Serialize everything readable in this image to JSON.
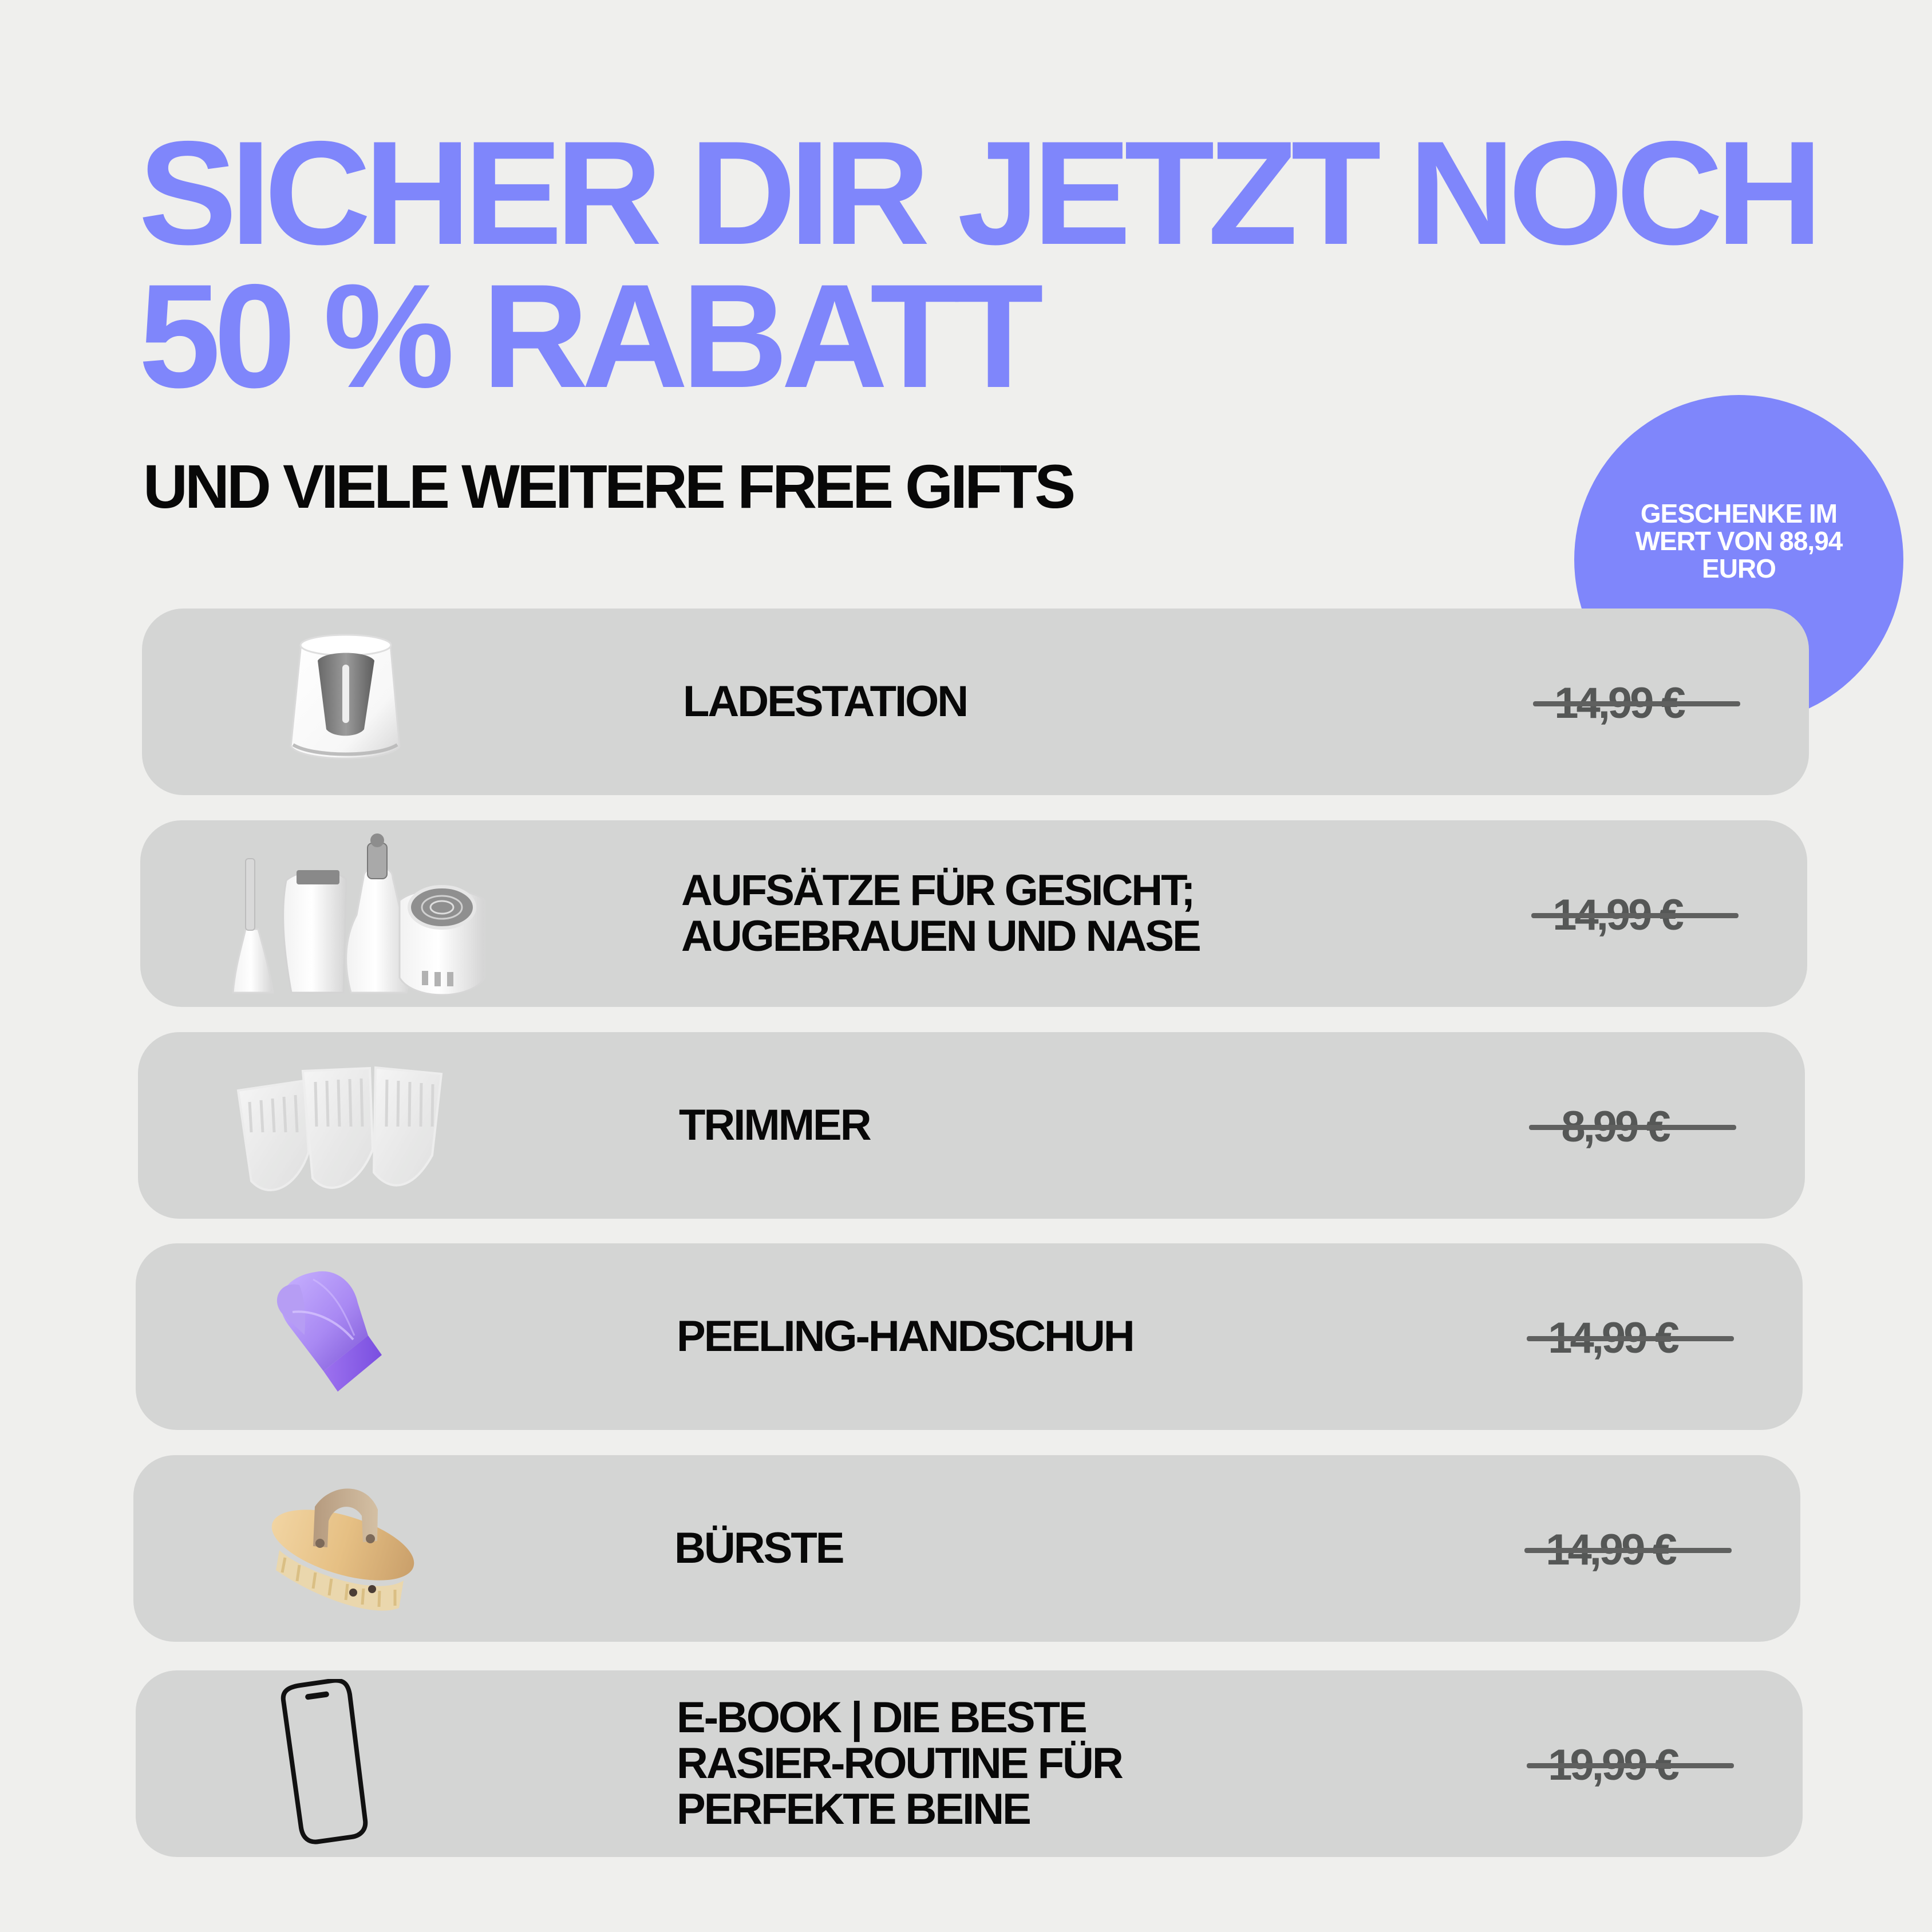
{
  "headline": {
    "line1": "SICHER DIR JETZT NOCH",
    "line2": "50 % RABATT"
  },
  "subheadline": "UND VIELE WEITERE FREE GIFTS",
  "badge": {
    "text": "GESCHENKE IM\nWERT VON 88,94\nEURO"
  },
  "gifts": [
    {
      "name": "LADESTATION",
      "price": "14,99 €",
      "icon": "charging-station-icon"
    },
    {
      "name": "AUFSÄTZE FÜR GESICHT;\nAUGEBRAUEN UND NASE",
      "price": "14,99 €",
      "icon": "attachments-icon"
    },
    {
      "name": "TRIMMER",
      "price": "8,99 €",
      "icon": "trimmer-icon"
    },
    {
      "name": "PEELING-HANDSCHUH",
      "price": "14,99 €",
      "icon": "exfoliating-glove-icon"
    },
    {
      "name": "BÜRSTE",
      "price": "14,99 €",
      "icon": "brush-icon"
    },
    {
      "name": "E-BOOK | DIE BESTE\nRASIER-ROUTINE FÜR\nPERFEKTE BEINE",
      "price": "19,99 €",
      "icon": "smartphone-icon"
    }
  ],
  "colors": {
    "accent": "#7f86fb",
    "background": "#efefed",
    "row_background": "#d4d5d4",
    "text": "#080808",
    "price": "#555756"
  }
}
